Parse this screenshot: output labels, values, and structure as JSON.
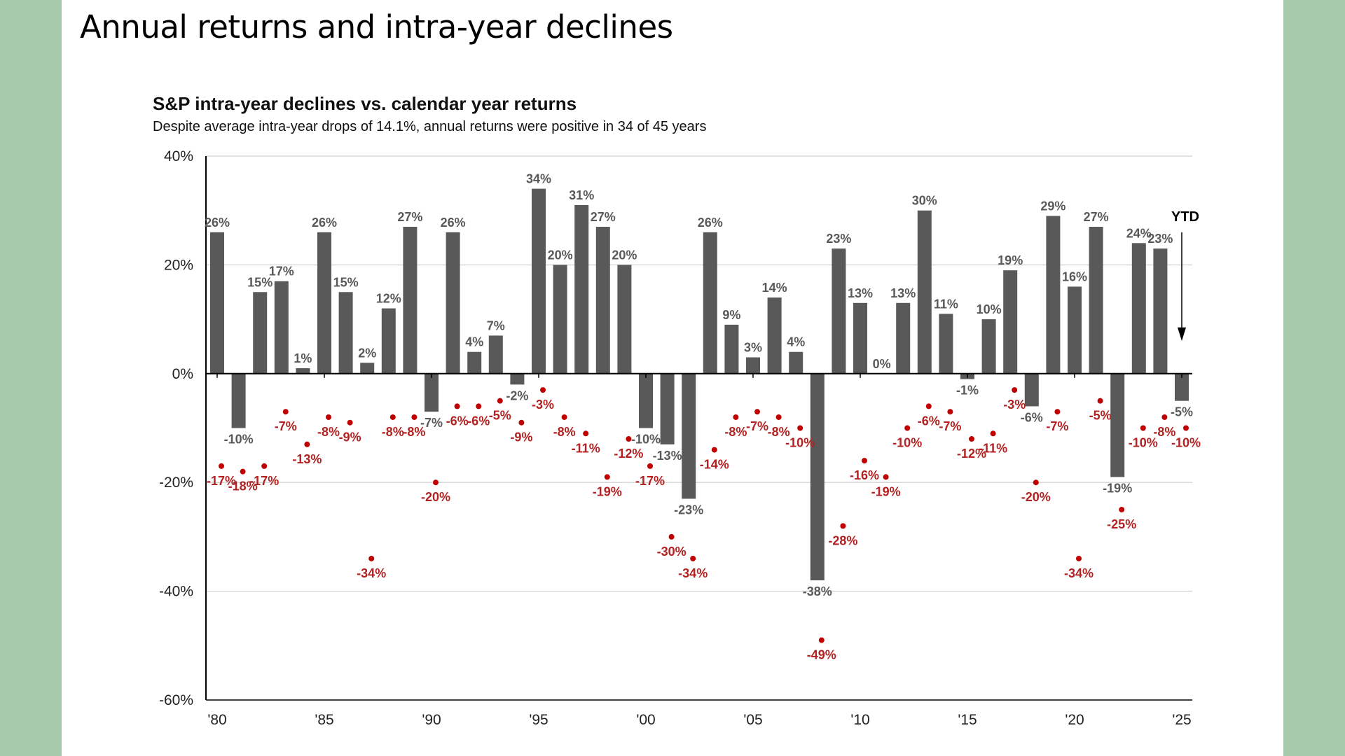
{
  "page_title": "Annual returns and intra-year declines",
  "chart_data": {
    "type": "bar",
    "title": "S&P intra-year declines vs. calendar year returns",
    "subtitle": "Despite average intra-year drops of 14.1%, annual returns were positive in 34 of 45 years",
    "ylim": [
      -60,
      40
    ],
    "yticks": [
      40,
      20,
      0,
      -20,
      -40,
      -60
    ],
    "ytick_labels": [
      "40%",
      "20%",
      "0%",
      "-20%",
      "-40%",
      "-60%"
    ],
    "x_start_year": 1980,
    "x_end_year": 2025,
    "xtick_labels": [
      "'80",
      "'85",
      "'90",
      "'95",
      "'00",
      "'05",
      "'10",
      "'15",
      "'20",
      "'25"
    ],
    "grid": true,
    "colors": {
      "bar": "#595959",
      "dot": "#c00000",
      "dot_label": "#b22222",
      "grid": "#d9d9d9",
      "axis": "#000000"
    },
    "series": [
      {
        "values": [
          26,
          -10,
          15,
          17,
          1,
          26,
          15,
          2,
          12,
          27,
          -7,
          26,
          4,
          7,
          -2,
          34,
          20,
          31,
          27,
          20,
          -10,
          -13,
          -23,
          26,
          9,
          3,
          14,
          4,
          -38,
          23,
          13,
          0,
          13,
          30,
          11,
          -1,
          10,
          19,
          -6,
          29,
          16,
          27,
          -19,
          24,
          23,
          -5
        ],
        "labels": [
          "26%",
          "-10%",
          "15%",
          "17%",
          "1%",
          "26%",
          "15%",
          "2%",
          "12%",
          "27%",
          "-7%",
          "26%",
          "4%",
          "7%",
          "-2%",
          "34%",
          "20%",
          "31%",
          "27%",
          "20%",
          "-10%",
          "-13%",
          "-23%",
          "26%",
          "9%",
          "3%",
          "14%",
          "4%",
          "-38%",
          "23%",
          "13%",
          "0%",
          "13%",
          "30%",
          "11%",
          "-1%",
          "10%",
          "19%",
          "-6%",
          "29%",
          "16%",
          "27%",
          "-19%",
          "24%",
          "23%",
          "-5%"
        ]
      },
      {
        "values": [
          -17,
          -18,
          -17,
          -7,
          -13,
          -8,
          -9,
          -34,
          -8,
          -8,
          -20,
          -6,
          -6,
          -5,
          -9,
          -3,
          -8,
          -11,
          -19,
          -12,
          -17,
          -30,
          -34,
          -14,
          -8,
          -7,
          -8,
          -10,
          -49,
          -28,
          -16,
          -19,
          -10,
          -6,
          -7,
          -12,
          -11,
          -3,
          -20,
          -7,
          -34,
          -5,
          -25,
          -10,
          -8,
          -10
        ],
        "labels": [
          "-17%",
          "-18%",
          "-17%",
          "-7%",
          "-13%",
          "-8%",
          "-9%",
          "-34%",
          "-8%",
          "-8%",
          "-20%",
          "-6%",
          "-6%",
          "-5%",
          "-9%",
          "-3%",
          "-8%",
          "-11%",
          "-19%",
          "-12%",
          "-17%",
          "-30%",
          "-34%",
          "-14%",
          "-8%",
          "-7%",
          "-8%",
          "-10%",
          "-49%",
          "-28%",
          "-16%",
          "-19%",
          "-10%",
          "-6%",
          "-7%",
          "-12%",
          "-11%",
          "-3%",
          "-20%",
          "-7%",
          "-34%",
          "-5%",
          "-25%",
          "-10%",
          "-8%",
          "-10%"
        ]
      }
    ],
    "annotation": {
      "text": "YTD"
    }
  }
}
